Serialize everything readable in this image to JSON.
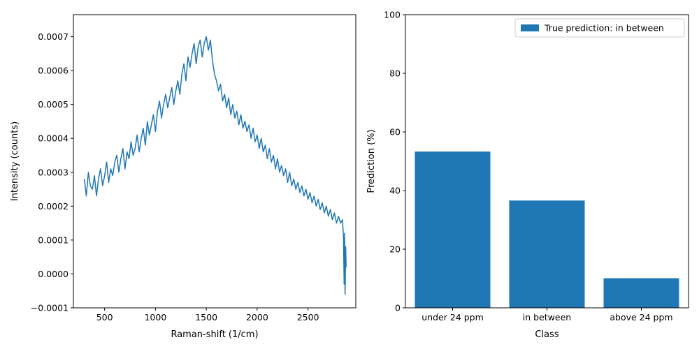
{
  "chart_data": [
    {
      "type": "line",
      "title": "",
      "xlabel": "Raman-shift (1/cm)",
      "ylabel": "Intensity (counts)",
      "xlim": [
        193,
        2970
      ],
      "ylim": [
        -0.0001,
        0.000765
      ],
      "xticks": [
        500,
        1000,
        1500,
        2000,
        2500
      ],
      "xtick_labels": [
        "500",
        "1000",
        "1500",
        "2000",
        "2500"
      ],
      "yticks": [
        -0.0001,
        0.0,
        0.0001,
        0.0002,
        0.0003,
        0.0004,
        0.0005,
        0.0006,
        0.0007
      ],
      "ytick_labels": [
        "−0.0001",
        "0.0000",
        "0.0001",
        "0.0002",
        "0.0003",
        "0.0004",
        "0.0005",
        "0.0006",
        "0.0007"
      ],
      "grid": false,
      "color": "#1f77b4",
      "series": [
        {
          "x": [
            300,
            320,
            340,
            360,
            380,
            400,
            420,
            440,
            460,
            480,
            500,
            520,
            540,
            560,
            580,
            600,
            620,
            640,
            660,
            680,
            700,
            720,
            740,
            760,
            780,
            800,
            820,
            840,
            860,
            880,
            900,
            920,
            940,
            960,
            980,
            1000,
            1020,
            1040,
            1060,
            1080,
            1100,
            1120,
            1140,
            1160,
            1180,
            1200,
            1220,
            1240,
            1260,
            1280,
            1300,
            1320,
            1340,
            1360,
            1380,
            1400,
            1420,
            1440,
            1460,
            1480,
            1500,
            1520,
            1540,
            1560,
            1580,
            1600,
            1620,
            1640,
            1660,
            1680,
            1700,
            1720,
            1740,
            1760,
            1780,
            1800,
            1820,
            1840,
            1860,
            1880,
            1900,
            1920,
            1940,
            1960,
            1980,
            2000,
            2020,
            2040,
            2060,
            2080,
            2100,
            2120,
            2140,
            2160,
            2180,
            2200,
            2220,
            2240,
            2260,
            2280,
            2300,
            2320,
            2340,
            2360,
            2380,
            2400,
            2420,
            2440,
            2460,
            2480,
            2500,
            2520,
            2540,
            2560,
            2580,
            2600,
            2620,
            2640,
            2660,
            2680,
            2700,
            2720,
            2740,
            2760,
            2780,
            2800,
            2820,
            2840,
            2850,
            2855,
            2860,
            2865,
            2870,
            2875
          ],
          "y": [
            0.00028,
            0.00023,
            0.0003,
            0.00026,
            0.00025,
            0.00029,
            0.00023,
            0.00028,
            0.00031,
            0.00026,
            0.00029,
            0.00033,
            0.00027,
            0.00031,
            0.00029,
            0.00033,
            0.00035,
            0.0003,
            0.00034,
            0.00037,
            0.00031,
            0.00036,
            0.00034,
            0.00039,
            0.00035,
            0.00037,
            0.00041,
            0.00036,
            0.0004,
            0.00043,
            0.00038,
            0.00045,
            0.00041,
            0.00044,
            0.00047,
            0.00042,
            0.00048,
            0.00051,
            0.00046,
            0.0005,
            0.00053,
            0.00049,
            0.00052,
            0.00055,
            0.0005,
            0.00054,
            0.00057,
            0.00053,
            0.00059,
            0.00062,
            0.00057,
            0.00064,
            0.00061,
            0.00065,
            0.00068,
            0.00062,
            0.00067,
            0.00069,
            0.00064,
            0.00068,
            0.0007,
            0.00066,
            0.00069,
            0.00063,
            0.00059,
            0.00057,
            0.00054,
            0.00056,
            0.00051,
            0.00053,
            0.00049,
            0.00052,
            0.00047,
            0.0005,
            0.00046,
            0.00048,
            0.00044,
            0.00047,
            0.00043,
            0.00045,
            0.00042,
            0.00044,
            0.0004,
            0.00043,
            0.00039,
            0.00041,
            0.00037,
            0.0004,
            0.00036,
            0.00038,
            0.00034,
            0.00037,
            0.00033,
            0.00035,
            0.00031,
            0.00034,
            0.0003,
            0.00032,
            0.00029,
            0.00031,
            0.00027,
            0.0003,
            0.00026,
            0.00028,
            0.00025,
            0.00027,
            0.00024,
            0.00026,
            0.00023,
            0.00025,
            0.00022,
            0.00024,
            0.00021,
            0.00023,
            0.0002,
            0.00022,
            0.00019,
            0.00021,
            0.00018,
            0.0002,
            0.00017,
            0.00019,
            0.00016,
            0.00018,
            0.00015,
            0.00017,
            0.00015,
            0.00016,
            0.0001,
            -3e-05,
            0.00012,
            -6e-05,
            8e-05,
            2e-05
          ]
        }
      ]
    },
    {
      "type": "bar",
      "title": "",
      "xlabel": "Class",
      "ylabel": "Prediction (%)",
      "categories": [
        "under 24 ppm",
        "in between",
        "above 24 ppm"
      ],
      "values": [
        53.3,
        36.6,
        10.1
      ],
      "ylim": [
        0,
        100
      ],
      "yticks": [
        0,
        20,
        40,
        60,
        80,
        100
      ],
      "ytick_labels": [
        "0",
        "20",
        "40",
        "60",
        "80",
        "100"
      ],
      "grid": false,
      "color": "#1f77b4",
      "legend": {
        "position": "top-right",
        "entries": [
          {
            "label": "True prediction: in between",
            "color": "#1f77b4"
          }
        ]
      }
    }
  ]
}
